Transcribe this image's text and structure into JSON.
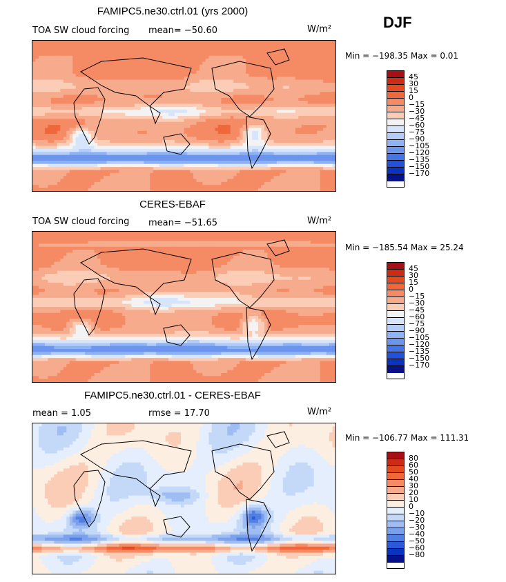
{
  "season": "DJF",
  "unit": "W/m²",
  "panels": [
    {
      "title": "FAMIPC5.ne30.ctrl.01 (yrs 2000)",
      "variable": "TOA SW cloud forcing",
      "stat1": "mean= −50.60",
      "stat2": "",
      "minmax": "Min = −198.35 Max =   0.01",
      "field": "model",
      "levels": [
        "45",
        "30",
        "15",
        "0",
        "−15",
        "−30",
        "−45",
        "−60",
        "−75",
        "−90",
        "−105",
        "−120",
        "−135",
        "−150",
        "−170"
      ],
      "colors": [
        "#a50f15",
        "#cb2c13",
        "#e34a1f",
        "#f0683a",
        "#f58b65",
        "#f7ab8d",
        "#fbcdb7",
        "#f3f3f3",
        "#d6e5fb",
        "#b3cdf8",
        "#8fb2f2",
        "#6c95ee",
        "#4574e6",
        "#2252db",
        "#0a33c0",
        "#06118a"
      ]
    },
    {
      "title": "CERES-EBAF",
      "variable": "TOA SW cloud forcing",
      "stat1": "mean= −51.65",
      "stat2": "",
      "minmax": "Min = −185.54 Max =  25.24",
      "field": "obs",
      "levels": [
        "45",
        "30",
        "15",
        "0",
        "−15",
        "−30",
        "−45",
        "−60",
        "−75",
        "−90",
        "−105",
        "−120",
        "−135",
        "−150",
        "−170"
      ],
      "colors": [
        "#a50f15",
        "#cb2c13",
        "#e34a1f",
        "#f0683a",
        "#f58b65",
        "#f7ab8d",
        "#fbcdb7",
        "#f3f3f3",
        "#d6e5fb",
        "#b3cdf8",
        "#8fb2f2",
        "#6c95ee",
        "#4574e6",
        "#2252db",
        "#0a33c0",
        "#06118a"
      ]
    },
    {
      "title": "FAMIPC5.ne30.ctrl.01 - CERES-EBAF",
      "variable": "mean =   1.05",
      "stat1": "rmse =  17.70",
      "stat2": "",
      "minmax": "Min = −106.77 Max = 111.31",
      "field": "diff",
      "levels": [
        "80",
        "60",
        "50",
        "40",
        "30",
        "20",
        "10",
        "0",
        "−10",
        "−20",
        "−30",
        "−40",
        "−50",
        "−60",
        "−80"
      ],
      "colors": [
        "#a50f15",
        "#cb2c13",
        "#e34a1f",
        "#f0683a",
        "#f58b65",
        "#f7ab8d",
        "#fbcdb7",
        "#fdeee2",
        "#e4eefc",
        "#c4d8f8",
        "#9fbdf2",
        "#7ba0ec",
        "#517fe4",
        "#2c59da",
        "#0a33c0",
        "#06118a"
      ]
    }
  ]
}
